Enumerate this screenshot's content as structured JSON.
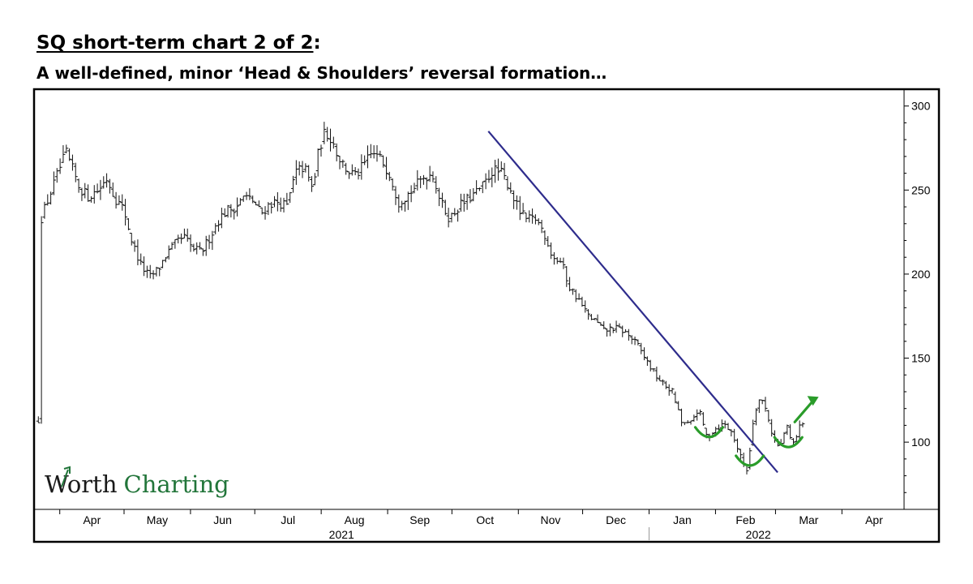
{
  "header": {
    "title": "SQ short-term chart 2 of 2",
    "title_suffix": ":",
    "subtitle": "A well-defined, minor ‘Head & Shoulders’ reversal formation…"
  },
  "logo": {
    "part1": "Worth",
    "part2": "Charting",
    "color_primary": "#1a1a1a",
    "color_accent": "#22753a"
  },
  "chart_data": {
    "type": "ohlc",
    "title": "SQ short-term chart 2 of 2",
    "subtitle": "A well-defined, minor ‘Head & Shoulders’ reversal formation…",
    "y_axis": {
      "position": "right",
      "ticks": [
        100,
        150,
        200,
        250,
        300
      ],
      "ylim": [
        60,
        310
      ]
    },
    "x_axis": {
      "months": [
        "Apr",
        "May",
        "Jun",
        "Jul",
        "Aug",
        "Sep",
        "Oct",
        "Nov",
        "Dec",
        "Jan",
        "Feb",
        "Mar",
        "Apr"
      ],
      "years": [
        "2021",
        "2022"
      ],
      "month_start_days": [
        0,
        30,
        61,
        91,
        122,
        153,
        183,
        214,
        244,
        275,
        306,
        334,
        365
      ],
      "year_divider_day": 275,
      "data_range_days": [
        -10,
        347
      ]
    },
    "price_path": [
      [
        -9,
        232
      ],
      [
        -5,
        246
      ],
      [
        -2,
        256
      ],
      [
        0,
        263
      ],
      [
        3,
        272
      ],
      [
        6,
        262
      ],
      [
        9,
        252
      ],
      [
        13,
        246
      ],
      [
        18,
        250
      ],
      [
        22,
        257
      ],
      [
        26,
        245
      ],
      [
        30,
        238
      ],
      [
        34,
        218
      ],
      [
        38,
        205
      ],
      [
        42,
        198
      ],
      [
        46,
        203
      ],
      [
        50,
        212
      ],
      [
        54,
        218
      ],
      [
        58,
        222
      ],
      [
        62,
        215
      ],
      [
        66,
        213
      ],
      [
        70,
        222
      ],
      [
        74,
        232
      ],
      [
        78,
        238
      ],
      [
        82,
        240
      ],
      [
        86,
        246
      ],
      [
        90,
        244
      ],
      [
        94,
        236
      ],
      [
        98,
        242
      ],
      [
        102,
        243
      ],
      [
        106,
        240
      ],
      [
        110,
        260
      ],
      [
        114,
        264
      ],
      [
        118,
        250
      ],
      [
        121,
        275
      ],
      [
        124,
        285
      ],
      [
        127,
        280
      ],
      [
        130,
        270
      ],
      [
        134,
        262
      ],
      [
        138,
        258
      ],
      [
        142,
        265
      ],
      [
        146,
        272
      ],
      [
        150,
        268
      ],
      [
        154,
        260
      ],
      [
        158,
        243
      ],
      [
        162,
        247
      ],
      [
        166,
        252
      ],
      [
        170,
        258
      ],
      [
        174,
        260
      ],
      [
        178,
        242
      ],
      [
        182,
        233
      ],
      [
        186,
        240
      ],
      [
        190,
        244
      ],
      [
        194,
        248
      ],
      [
        198,
        253
      ],
      [
        202,
        262
      ],
      [
        206,
        260
      ],
      [
        210,
        252
      ],
      [
        214,
        238
      ],
      [
        218,
        232
      ],
      [
        222,
        233
      ],
      [
        226,
        225
      ],
      [
        230,
        210
      ],
      [
        234,
        207
      ],
      [
        238,
        192
      ],
      [
        242,
        185
      ],
      [
        246,
        176
      ],
      [
        250,
        172
      ],
      [
        254,
        166
      ],
      [
        258,
        168
      ],
      [
        262,
        167
      ],
      [
        266,
        163
      ],
      [
        270,
        157
      ],
      [
        274,
        148
      ],
      [
        278,
        140
      ],
      [
        282,
        134
      ],
      [
        286,
        130
      ],
      [
        290,
        112
      ],
      [
        294,
        110
      ],
      [
        298,
        120
      ],
      [
        302,
        103
      ],
      [
        306,
        108
      ],
      [
        310,
        111
      ],
      [
        314,
        105
      ],
      [
        318,
        90
      ],
      [
        321,
        83
      ],
      [
        324,
        118
      ],
      [
        327,
        127
      ],
      [
        330,
        118
      ],
      [
        333,
        102
      ],
      [
        336,
        96
      ],
      [
        339,
        110
      ],
      [
        342,
        98
      ],
      [
        345,
        108
      ],
      [
        347,
        113
      ]
    ],
    "trendline": {
      "from": [
        200,
        285
      ],
      "to": [
        335,
        82
      ],
      "color": "#2e2c8c"
    },
    "head_and_shoulders_arcs": [
      {
        "name": "left-shoulder",
        "center": [
          303,
          105
        ],
        "color": "#2a9c2a"
      },
      {
        "name": "head",
        "center": [
          322,
          88
        ],
        "color": "#2a9c2a"
      },
      {
        "name": "right-shoulder",
        "center": [
          340,
          99
        ],
        "color": "#2a9c2a"
      }
    ],
    "breakout_arrow": {
      "from": [
        343,
        112
      ],
      "to": [
        353,
        126
      ],
      "color": "#2a9c2a"
    },
    "colors": {
      "bars": "#111111",
      "frame": "#000000"
    },
    "grid": false
  }
}
